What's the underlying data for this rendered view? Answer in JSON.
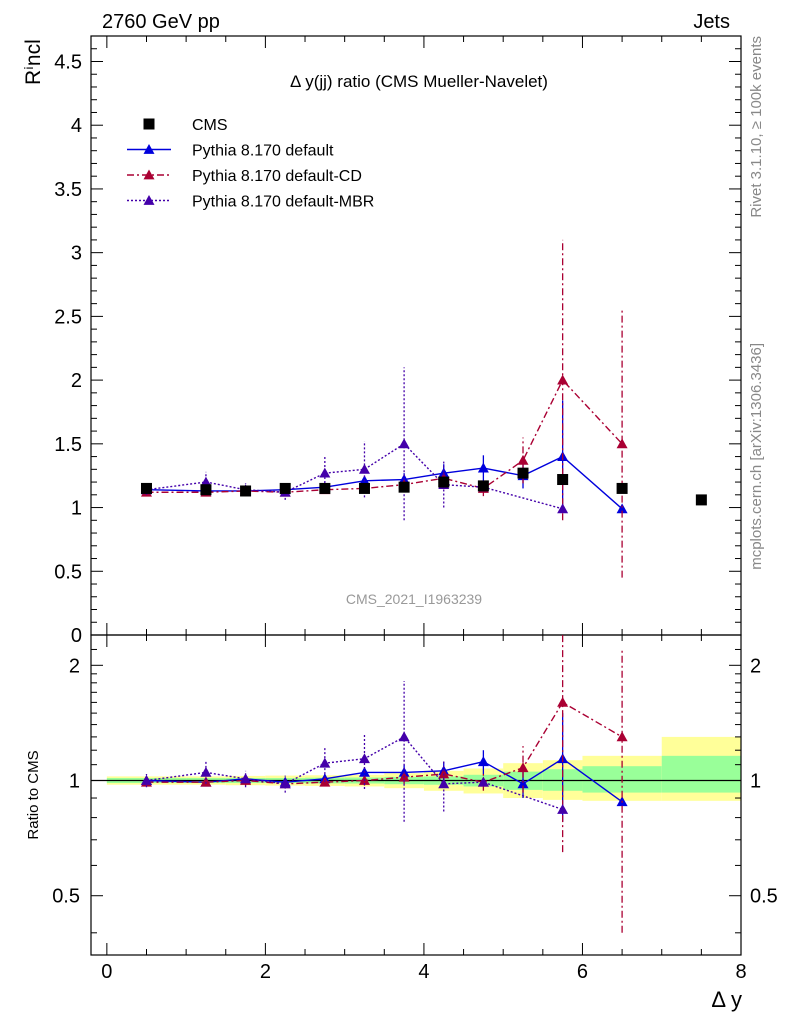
{
  "header": {
    "left": "2760 GeV pp",
    "right": "Jets"
  },
  "side_labels": {
    "rivet": "Rivet 3.1.10, ≥ 100k events",
    "mcplots": "mcplots.cern.ch [arXiv:1306.3436]"
  },
  "chart_data": {
    "type": "scatter",
    "title": "Δ y(jj) ratio (CMS Mueller-Navelet)",
    "watermark": "CMS_2021_I1963239",
    "xlabel": "Δ y",
    "ylabel": "Rⁱncl",
    "ratio_ylabel": "Ratio to CMS",
    "xlim": [
      -0.2,
      8.0
    ],
    "ylim": [
      0,
      4.7
    ],
    "ratio_ylim": [
      0.35,
      2.4
    ],
    "x_ticks": [
      "0",
      "2",
      "4",
      "6",
      "8"
    ],
    "y_ticks": [
      "0",
      "0.5",
      "1",
      "1.5",
      "2",
      "2.5",
      "3",
      "3.5",
      "4",
      "4.5"
    ],
    "ratio_ticks_left": [
      "0.5",
      "1",
      "2"
    ],
    "ratio_ticks_right": [
      "0.5",
      "1",
      "2"
    ],
    "colors": {
      "data": "#000000",
      "default": "#0000dd",
      "cd": "#aa0033",
      "mbr": "#4400aa",
      "band_inner": "#99ff99",
      "band_outer": "#ffff99"
    },
    "data_series": {
      "name": "CMS",
      "x": [
        0.5,
        1.25,
        1.75,
        2.25,
        2.75,
        3.25,
        3.75,
        4.25,
        4.75,
        5.25,
        5.75,
        6.5,
        7.5
      ],
      "y": [
        1.15,
        1.14,
        1.13,
        1.15,
        1.15,
        1.15,
        1.16,
        1.2,
        1.17,
        1.27,
        1.22,
        1.15,
        1.06
      ]
    },
    "ratio_bands": [
      {
        "x0": 0.0,
        "x1": 1.0,
        "inner": [
          0.985,
          1.015
        ],
        "outer": [
          0.975,
          1.025
        ]
      },
      {
        "x0": 1.0,
        "x1": 1.5,
        "inner": [
          0.985,
          1.015
        ],
        "outer": [
          0.975,
          1.025
        ]
      },
      {
        "x0": 1.5,
        "x1": 2.0,
        "inner": [
          0.985,
          1.015
        ],
        "outer": [
          0.972,
          1.028
        ]
      },
      {
        "x0": 2.0,
        "x1": 2.5,
        "inner": [
          0.985,
          1.015
        ],
        "outer": [
          0.97,
          1.03
        ]
      },
      {
        "x0": 2.5,
        "x1": 3.0,
        "inner": [
          0.983,
          1.017
        ],
        "outer": [
          0.968,
          1.032
        ]
      },
      {
        "x0": 3.0,
        "x1": 3.5,
        "inner": [
          0.982,
          1.018
        ],
        "outer": [
          0.965,
          1.035
        ]
      },
      {
        "x0": 3.5,
        "x1": 4.0,
        "inner": [
          0.978,
          1.022
        ],
        "outer": [
          0.955,
          1.045
        ]
      },
      {
        "x0": 4.0,
        "x1": 4.5,
        "inner": [
          0.975,
          1.025
        ],
        "outer": [
          0.94,
          1.06
        ]
      },
      {
        "x0": 4.5,
        "x1": 5.0,
        "inner": [
          0.965,
          1.035
        ],
        "outer": [
          0.925,
          1.075
        ]
      },
      {
        "x0": 5.0,
        "x1": 5.5,
        "inner": [
          0.945,
          1.055
        ],
        "outer": [
          0.9,
          1.11
        ]
      },
      {
        "x0": 5.5,
        "x1": 6.0,
        "inner": [
          0.94,
          1.07
        ],
        "outer": [
          0.89,
          1.13
        ]
      },
      {
        "x0": 6.0,
        "x1": 7.0,
        "inner": [
          0.93,
          1.09
        ],
        "outer": [
          0.885,
          1.16
        ]
      },
      {
        "x0": 7.0,
        "x1": 8.0,
        "inner": [
          0.93,
          1.16
        ],
        "outer": [
          0.885,
          1.3
        ]
      }
    ],
    "series": [
      {
        "name": "Pythia 8.170 default",
        "key": "default",
        "dash": "",
        "x": [
          0.5,
          1.25,
          1.75,
          2.25,
          2.75,
          3.25,
          3.75,
          4.25,
          4.75,
          5.25,
          5.75,
          6.5
        ],
        "y": [
          1.14,
          1.13,
          1.13,
          1.14,
          1.16,
          1.21,
          1.22,
          1.27,
          1.31,
          1.25,
          1.4,
          0.99
        ],
        "err": [
          0.02,
          0.02,
          0.02,
          0.02,
          0.03,
          0.03,
          0.05,
          0.07,
          0.1,
          0.1,
          0.44,
          0.0
        ],
        "ratio": [
          1.0,
          0.99,
          1.01,
          0.99,
          1.01,
          1.05,
          1.05,
          1.06,
          1.12,
          0.98,
          1.14,
          0.88
        ],
        "ratio_err": [
          0.02,
          0.02,
          0.02,
          0.02,
          0.03,
          0.03,
          0.05,
          0.06,
          0.08,
          0.08,
          0.36,
          0.0
        ]
      },
      {
        "name": "Pythia 8.170 default-CD",
        "key": "cd",
        "dash": "7,3,2,3",
        "x": [
          0.5,
          1.25,
          1.75,
          2.25,
          2.75,
          3.25,
          3.75,
          4.25,
          4.75,
          5.25,
          5.75,
          6.5
        ],
        "y": [
          1.12,
          1.12,
          1.13,
          1.12,
          1.14,
          1.15,
          1.18,
          1.23,
          1.15,
          1.37,
          2.0,
          1.5
        ],
        "err": [
          0.02,
          0.02,
          0.03,
          0.02,
          0.02,
          0.04,
          0.04,
          0.05,
          0.06,
          0.18,
          1.1,
          1.05
        ],
        "ratio": [
          0.99,
          0.99,
          1.0,
          0.98,
          0.99,
          1.0,
          1.02,
          1.04,
          0.99,
          1.08,
          1.6,
          1.3
        ],
        "ratio_err": [
          0.02,
          0.02,
          0.03,
          0.02,
          0.02,
          0.03,
          0.04,
          0.05,
          0.05,
          0.15,
          0.95,
          0.9
        ]
      },
      {
        "name": "Pythia 8.170 default-MBR",
        "key": "mbr",
        "dash": "2,2",
        "x": [
          0.5,
          1.25,
          1.75,
          2.25,
          2.75,
          3.25,
          3.75,
          4.25,
          4.75,
          5.75
        ],
        "y": [
          1.14,
          1.2,
          1.14,
          1.12,
          1.27,
          1.3,
          1.5,
          1.18,
          1.16,
          0.99
        ],
        "err": [
          0.04,
          0.08,
          0.05,
          0.06,
          0.14,
          0.22,
          0.6,
          0.18,
          0.0,
          0.0
        ],
        "ratio": [
          1.0,
          1.05,
          1.01,
          0.98,
          1.11,
          1.14,
          1.3,
          0.98,
          0.99,
          0.84
        ],
        "ratio_err": [
          0.04,
          0.07,
          0.05,
          0.05,
          0.12,
          0.19,
          0.52,
          0.15,
          0.0,
          0.0
        ]
      }
    ]
  }
}
